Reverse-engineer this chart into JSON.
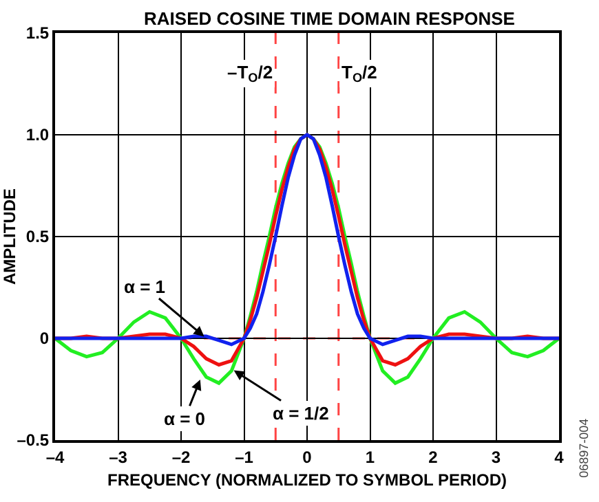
{
  "chart_data": {
    "type": "line",
    "title": "RAISED COSINE TIME DOMAIN RESPONSE",
    "xlabel": "FREQUENCY (NORMALIZED TO SYMBOL PERIOD)",
    "ylabel": "AMPLITUDE",
    "x": [
      -4,
      -3.75,
      -3.5,
      -3.25,
      -3,
      -2.75,
      -2.5,
      -2.25,
      -2,
      -1.8,
      -1.6,
      -1.4,
      -1.2,
      -1,
      -0.9,
      -0.8,
      -0.7,
      -0.6,
      -0.5,
      -0.4,
      -0.3,
      -0.2,
      -0.1,
      0,
      0.1,
      0.2,
      0.3,
      0.4,
      0.5,
      0.6,
      0.7,
      0.8,
      0.9,
      1,
      1.2,
      1.4,
      1.6,
      1.8,
      2,
      2.25,
      2.5,
      2.75,
      3,
      3.25,
      3.5,
      3.75,
      4
    ],
    "series": [
      {
        "color": "#22ee22",
        "values": [
          0,
          -0.06,
          -0.09,
          -0.07,
          0,
          0.08,
          0.13,
          0.1,
          0,
          -0.1,
          -0.19,
          -0.22,
          -0.16,
          0,
          0.11,
          0.23,
          0.37,
          0.5,
          0.64,
          0.76,
          0.86,
          0.94,
          0.98,
          1,
          0.98,
          0.94,
          0.86,
          0.76,
          0.64,
          0.5,
          0.37,
          0.23,
          0.11,
          0,
          -0.16,
          -0.22,
          -0.19,
          -0.1,
          0,
          0.1,
          0.13,
          0.08,
          0,
          -0.07,
          -0.09,
          -0.06,
          0
        ]
      },
      {
        "color": "#ee1111",
        "values": [
          0,
          0,
          0.01,
          0,
          0,
          0.01,
          0.02,
          0.02,
          0,
          -0.04,
          -0.1,
          -0.13,
          -0.11,
          0,
          0.09,
          0.2,
          0.33,
          0.46,
          0.6,
          0.73,
          0.84,
          0.93,
          0.98,
          1,
          0.98,
          0.93,
          0.84,
          0.73,
          0.6,
          0.46,
          0.33,
          0.2,
          0.09,
          0,
          -0.11,
          -0.13,
          -0.1,
          -0.04,
          0,
          0.02,
          0.02,
          0.01,
          0,
          0,
          0.01,
          0,
          0
        ]
      },
      {
        "color": "#1122ee",
        "values": [
          0,
          0,
          0,
          0,
          0,
          0,
          0,
          0,
          0,
          0.01,
          0.01,
          -0.01,
          -0.03,
          0,
          0.05,
          0.12,
          0.23,
          0.36,
          0.5,
          0.65,
          0.79,
          0.9,
          0.98,
          1,
          0.98,
          0.9,
          0.79,
          0.65,
          0.5,
          0.36,
          0.23,
          0.12,
          0.05,
          0,
          -0.03,
          -0.01,
          0.01,
          0.01,
          0,
          0,
          0,
          0,
          0,
          0,
          0,
          0,
          0
        ]
      }
    ],
    "xlim": [
      -4,
      4
    ],
    "xticks": [
      {
        "value": -4,
        "label": "–4"
      },
      {
        "value": -3,
        "label": "–3"
      },
      {
        "value": -2,
        "label": "–2"
      },
      {
        "value": -1,
        "label": "–1"
      },
      0,
      1,
      2,
      3,
      4
    ],
    "ylim": [
      -0.5,
      1.5
    ],
    "yticks": [
      {
        "value": -0.5,
        "label": "–0.5"
      },
      0,
      0.5,
      {
        "value": 1,
        "label": "1.0"
      },
      1.5
    ],
    "grid": true,
    "marker": "none",
    "line_style": "solid",
    "ref_lines": [
      {
        "axis": "x",
        "value": -0.5,
        "label": "–T$_{O}$/2",
        "color": "#ff4444",
        "line_style": "dashed"
      },
      {
        "axis": "x",
        "value": 0.5,
        "label": "T$_{O}$/2",
        "color": "#ff4444",
        "line_style": "dashed"
      },
      {
        "axis": "y",
        "value": 0,
        "color": "#ff4444",
        "line_style": "dashed"
      }
    ],
    "annotations": [
      {
        "text": "α = 1",
        "x": -1.6,
        "y": 0
      },
      {
        "text": "α = 0",
        "x": -1.68,
        "y": -0.19
      },
      {
        "text": "α = 1/2",
        "x": -1.2,
        "y": -0.15
      },
      "06897-004"
    ]
  }
}
